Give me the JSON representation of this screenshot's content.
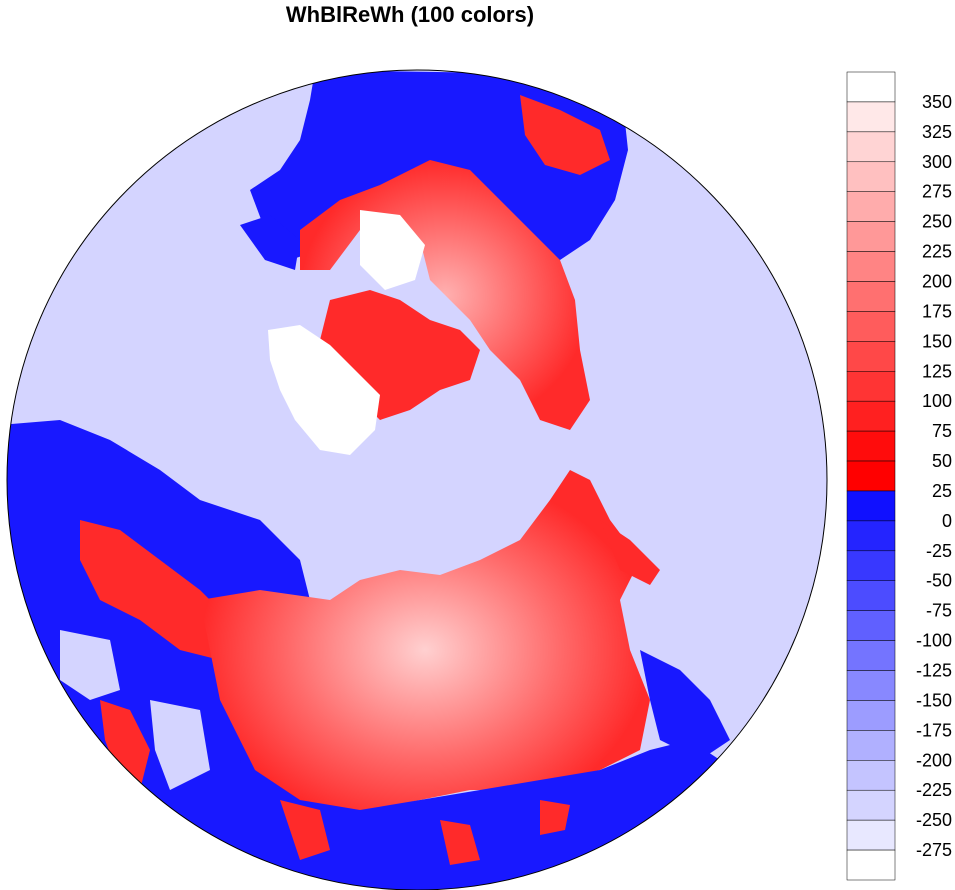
{
  "title": "WhBlReWh (100 colors)",
  "colorbar": {
    "labels": [
      "350",
      "325",
      "300",
      "275",
      "250",
      "225",
      "200",
      "175",
      "150",
      "125",
      "100",
      "75",
      "50",
      "25",
      "0",
      "-25",
      "-50",
      "-75",
      "-100",
      "-125",
      "-150",
      "-175",
      "-200",
      "-225",
      "-250",
      "-275"
    ],
    "colors": [
      "#ffffff",
      "#ffe8e8",
      "#ffd4d4",
      "#ffc0c0",
      "#ffacac",
      "#ff9898",
      "#ff8484",
      "#ff7070",
      "#ff5c5c",
      "#ff4848",
      "#ff3434",
      "#ff2020",
      "#ff0c0c",
      "#ff0000",
      "#1010ff",
      "#2424ff",
      "#3838ff",
      "#4c4cff",
      "#6060ff",
      "#7474ff",
      "#8888ff",
      "#9c9cff",
      "#b0b0ff",
      "#c4c4ff",
      "#d4d4ff",
      "#e8e8ff",
      "#ffffff"
    ]
  },
  "map": {
    "ocean_color": "#d4d4ff",
    "land_negative_color": "#1818ff",
    "land_positive_color": "#ff2a2a",
    "land_high_color": "#ffe0e0",
    "ice_color": "#ffffff"
  }
}
